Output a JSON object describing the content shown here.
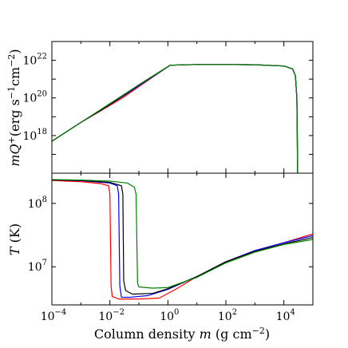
{
  "chart_data": [
    {
      "type": "line",
      "panel": "top",
      "ylabel": {
        "pre": "mQ",
        "sup1": "+",
        "mid": "(erg s",
        "sup2": "−1",
        "mid2": "cm",
        "sup3": "−2",
        "post": ")"
      },
      "xscale": "log",
      "yscale": "log",
      "xlim": [
        0.0001,
        100000
      ],
      "ylim": [
        1e+16,
        1e+23
      ],
      "yticks": [
        {
          "base": "10",
          "exp": "18",
          "value": 1e+18
        },
        {
          "base": "10",
          "exp": "20",
          "value": 1e+20
        },
        {
          "base": "10",
          "exp": "22",
          "value": 1e+22
        }
      ],
      "legend": "none",
      "grid": false,
      "series": [
        {
          "color": "#ff0000",
          "x": [
            0.0001,
            0.001,
            0.01,
            0.03,
            0.1,
            1.2,
            10,
            100,
            1000,
            10000,
            20000,
            25000,
            28000,
            29000,
            29500
          ],
          "y": [
            5e+17,
            5e+18,
            4e+19,
            1.1e+20,
            4e+20,
            5.5e+21,
            6e+21,
            6e+21,
            5.8e+21,
            5e+21,
            3.5e+21,
            1.5e+21,
            1e+20,
            1e+18,
            1e+16
          ]
        },
        {
          "color": "#0000ff",
          "x": [
            0.0001,
            0.001,
            0.01,
            0.03,
            0.1,
            1.2,
            10,
            100,
            1000,
            10000,
            20000,
            25000,
            28000,
            29000,
            29500
          ],
          "y": [
            5e+17,
            5e+18,
            4.5e+19,
            1.3e+20,
            4.5e+20,
            5.5e+21,
            6e+21,
            6e+21,
            5.8e+21,
            5e+21,
            3.5e+21,
            1.5e+21,
            1e+20,
            1e+18,
            1e+16
          ]
        },
        {
          "color": "#000000",
          "x": [
            0.0001,
            0.001,
            0.01,
            0.03,
            0.1,
            1.2,
            10,
            100,
            1000,
            10000,
            20000,
            25000,
            28000,
            29000,
            29500
          ],
          "y": [
            5e+17,
            5e+18,
            4.5e+19,
            1.4e+20,
            5e+20,
            5.5e+21,
            6e+21,
            6e+21,
            5.8e+21,
            5e+21,
            3.5e+21,
            1.5e+21,
            1e+20,
            1e+18,
            1e+16
          ]
        },
        {
          "color": "#008000",
          "x": [
            0.0001,
            0.001,
            0.01,
            0.03,
            0.1,
            1.2,
            10,
            100,
            1000,
            10000,
            20000,
            25000,
            28000,
            29000,
            29500
          ],
          "y": [
            5e+17,
            5e+18,
            5e+19,
            1.5e+20,
            5e+20,
            5.5e+21,
            6e+21,
            6e+21,
            5.8e+21,
            5e+21,
            3.5e+21,
            1.5e+21,
            1e+20,
            1e+18,
            1e+16
          ]
        }
      ]
    },
    {
      "type": "line",
      "panel": "bottom",
      "ylabel": {
        "pre": "T",
        "post": " (K)"
      },
      "xlabel": {
        "pre": "Column density ",
        "var": "m",
        "mid": " (g cm",
        "sup": "−2",
        "post": ")"
      },
      "xscale": "log",
      "yscale": "log",
      "xlim": [
        0.0001,
        100000
      ],
      "ylim": [
        2500000,
        300000000
      ],
      "xticks": [
        {
          "base": "10",
          "exp": "−4",
          "value": 0.0001
        },
        {
          "base": "10",
          "exp": "−2",
          "value": 0.01
        },
        {
          "base": "10",
          "exp": "0",
          "value": 1
        },
        {
          "base": "10",
          "exp": "2",
          "value": 100
        },
        {
          "base": "10",
          "exp": "4",
          "value": 10000
        }
      ],
      "yticks": [
        {
          "base": "10",
          "exp": "7",
          "value": 10000000
        },
        {
          "base": "10",
          "exp": "8",
          "value": 100000000
        }
      ],
      "legend": "none",
      "grid": false,
      "series": [
        {
          "color": "#ff0000",
          "x": [
            0.0001,
            0.001,
            0.005,
            0.009,
            0.01,
            0.011,
            0.012,
            0.02,
            0.1,
            0.5,
            2,
            10,
            100,
            1000,
            10000,
            100000
          ],
          "y": [
            230000000,
            220000000,
            205000000,
            190000000,
            140000000,
            5000000,
            3400000,
            3100000,
            3100000,
            3200000,
            4500000,
            7000000,
            12000000,
            18000000,
            24000000,
            33000000
          ]
        },
        {
          "color": "#0000ff",
          "x": [
            0.0001,
            0.001,
            0.01,
            0.018,
            0.02,
            0.022,
            0.025,
            0.05,
            0.2,
            1,
            10,
            100,
            1000,
            10000,
            100000
          ],
          "y": [
            235000000,
            228000000,
            210000000,
            190000000,
            140000000,
            5000000,
            3300000,
            3300000,
            3500000,
            4400000,
            7000000,
            12000000,
            18000000,
            24000000,
            31000000
          ]
        },
        {
          "color": "#000000",
          "x": [
            0.0001,
            0.001,
            0.01,
            0.025,
            0.028,
            0.03,
            0.035,
            0.06,
            0.3,
            1,
            10,
            100,
            1000,
            10000,
            100000
          ],
          "y": [
            235000000,
            230000000,
            215000000,
            190000000,
            140000000,
            6000000,
            4200000,
            3700000,
            3800000,
            4500000,
            7000000,
            12000000,
            17500000,
            23000000,
            29000000
          ]
        },
        {
          "color": "#008000",
          "x": [
            0.0001,
            0.001,
            0.01,
            0.04,
            0.07,
            0.08,
            0.09,
            0.1,
            0.3,
            1,
            10,
            100,
            1000,
            10000,
            100000
          ],
          "y": [
            238000000,
            234000000,
            225000000,
            210000000,
            180000000,
            140000000,
            5500000,
            4800000,
            4600000,
            4700000,
            6800000,
            11500000,
            17000000,
            22500000,
            27000000
          ]
        }
      ]
    }
  ]
}
